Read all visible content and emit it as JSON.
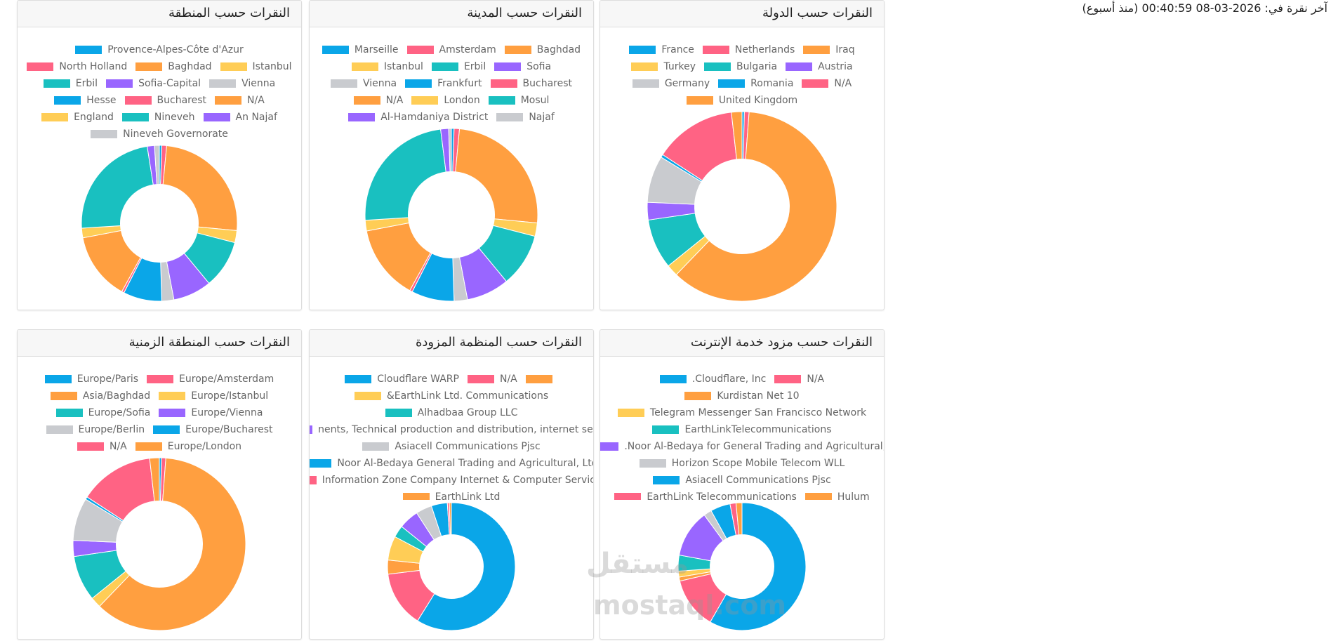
{
  "last_click": "آخر نقرة في: 2026-03-08 00:40:59 (منذ أسبوع)",
  "watermark": {
    "logo": "مستقل",
    "site": "mostaql.com"
  },
  "chart_data": [
    {
      "type": "doughnut",
      "title": "النقرات حسب الدولة",
      "categories": [
        "France",
        "Netherlands",
        "Iraq",
        "Turkey",
        "Bulgaria",
        "Austria",
        "Germany",
        "Romania",
        "N/A",
        "United Kingdom"
      ],
      "values": [
        0.4,
        0.8,
        61,
        2,
        8.5,
        3,
        8,
        0.5,
        14,
        1.8
      ],
      "colors": [
        "#0aa6e8",
        "#ff6384",
        "#ff9f40",
        "#ffcd56",
        "#19c0c0",
        "#9966ff",
        "#c9cbcf",
        "#0aa6e8",
        "#ff6384",
        "#ff9f40"
      ]
    },
    {
      "type": "doughnut",
      "title": "النقرات حسب المدينة",
      "categories": [
        "Marseille",
        "Amsterdam",
        "Baghdad",
        "Istanbul",
        "Erbil",
        "Sofia",
        "Vienna",
        "Frankfurt",
        "Bucharest",
        "N/A",
        "London",
        "Mosul",
        "Al-Hamdaniya District",
        "Najaf"
      ],
      "values": [
        0.5,
        1,
        25,
        2.5,
        10,
        8,
        2.5,
        8,
        0.5,
        14,
        2,
        24,
        1.5,
        0.5
      ],
      "colors": [
        "#0aa6e8",
        "#ff6384",
        "#ff9f40",
        "#ffcd56",
        "#19c0c0",
        "#9966ff",
        "#c9cbcf",
        "#0aa6e8",
        "#ff6384",
        "#ff9f40",
        "#ffcd56",
        "#19c0c0",
        "#9966ff",
        "#c9cbcf"
      ]
    },
    {
      "type": "doughnut",
      "title": "النقرات حسب المنطقة",
      "categories": [
        "Provence-Alpes-Côte d'Azur",
        "North Holland",
        "Baghdad",
        "Istanbul",
        "Erbil",
        "Sofia-Capital",
        "Vienna",
        "Hesse",
        "Bucharest",
        "N/A",
        "England",
        "Nineveh",
        "An Najaf",
        "Nineveh Governorate"
      ],
      "values": [
        0.5,
        1,
        25,
        2.5,
        10,
        8,
        2.5,
        8,
        0.5,
        14,
        2,
        23.5,
        1.5,
        1
      ],
      "colors": [
        "#0aa6e8",
        "#ff6384",
        "#ff9f40",
        "#ffcd56",
        "#19c0c0",
        "#9966ff",
        "#c9cbcf",
        "#0aa6e8",
        "#ff6384",
        "#ff9f40",
        "#ffcd56",
        "#19c0c0",
        "#9966ff",
        "#c9cbcf"
      ]
    },
    {
      "type": "doughnut",
      "title": "النقرات حسب مزود خدمة الإنترنت",
      "categories": [
        ".Cloudflare, Inc",
        "N/A",
        "Kurdistan Net 10",
        "Telegram Messenger San Francisco Network",
        "EarthLinkTelecommunications",
        ".Noor Al-Bedaya for General Trading and Agricultural, I",
        "Horizon Scope Mobile Telecom WLL",
        "Asiacell Communications Pjsc",
        "EarthLink Telecommunications",
        "Hulum"
      ],
      "values": [
        58,
        13,
        1,
        1.5,
        4,
        12,
        2,
        5,
        1.5,
        1.5
      ],
      "colors": [
        "#0aa6e8",
        "#ff6384",
        "#ff9f40",
        "#ffcd56",
        "#19c0c0",
        "#9966ff",
        "#c9cbcf",
        "#0aa6e8",
        "#ff6384",
        "#ff9f40"
      ]
    },
    {
      "type": "doughnut",
      "title": "النقرات حسب المنظمة المزودة",
      "categories": [
        "Cloudflare WARP",
        "N/A",
        null,
        "&EarthLink Ltd. Communications",
        "Alhadbaa Group LLC",
        "nents, Technical production and distribution, internet service",
        "Asiacell Communications Pjsc",
        "Noor Al-Bedaya General Trading and Agricultural, Ltd",
        "Information Zone Company Internet & Computer Services -",
        "EarthLink Ltd"
      ],
      "values": [
        58,
        14,
        3.5,
        6,
        3,
        5,
        4,
        4,
        0.5,
        0.5
      ],
      "colors": [
        "#0aa6e8",
        "#ff6384",
        "#ff9f40",
        "#ffcd56",
        "#19c0c0",
        "#9966ff",
        "#c9cbcf",
        "#0aa6e8",
        "#ff6384",
        "#ff9f40"
      ]
    },
    {
      "type": "doughnut",
      "title": "النقرات حسب المنطقة الزمنية",
      "categories": [
        "Europe/Paris",
        "Europe/Amsterdam",
        "Asia/Baghdad",
        "Europe/Istanbul",
        "Europe/Sofia",
        "Europe/Vienna",
        "Europe/Berlin",
        "Europe/Bucharest",
        "N/A",
        "Europe/London"
      ],
      "values": [
        0.4,
        0.8,
        61,
        2,
        8.5,
        3,
        8,
        0.5,
        14,
        1.8
      ],
      "colors": [
        "#0aa6e8",
        "#ff6384",
        "#ff9f40",
        "#ffcd56",
        "#19c0c0",
        "#9966ff",
        "#c9cbcf",
        "#0aa6e8",
        "#ff6384",
        "#ff9f40"
      ]
    }
  ]
}
